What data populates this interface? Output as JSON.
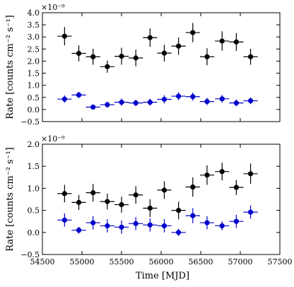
{
  "chart_data": [
    {
      "type": "scatter",
      "panel": "top",
      "ylabel": "Rate [counts cm⁻² s⁻¹]",
      "y_multiplier": "×10⁻⁹",
      "xlim": [
        54500,
        57500
      ],
      "ylim": [
        -0.5,
        4.0
      ],
      "x_ticks": [
        54500,
        55000,
        55500,
        56000,
        56500,
        57000,
        57500
      ],
      "y_ticks": [
        -0.5,
        0.0,
        0.5,
        1.0,
        1.5,
        2.0,
        2.5,
        3.0,
        3.5,
        4.0
      ],
      "y_tick_labels": [
        "−0.5",
        "0.0",
        "0.5",
        "1.0",
        "1.5",
        "2.0",
        "2.5",
        "3.0",
        "3.5",
        "4.0"
      ],
      "grid": false,
      "series": [
        {
          "color": "#000000",
          "x": [
            54780,
            54960,
            55140,
            55320,
            55500,
            55680,
            55860,
            56040,
            56220,
            56400,
            56580,
            56770,
            56950,
            57130
          ],
          "y": [
            3.03,
            2.32,
            2.18,
            1.77,
            2.2,
            2.13,
            2.97,
            2.33,
            2.62,
            3.18,
            2.18,
            2.83,
            2.79,
            2.18
          ],
          "xerr": 90,
          "yerr": [
            0.38,
            0.33,
            0.33,
            0.25,
            0.35,
            0.34,
            0.38,
            0.35,
            0.36,
            0.4,
            0.35,
            0.4,
            0.37,
            0.33
          ]
        },
        {
          "color": "#0000cc",
          "x": [
            54780,
            54960,
            55140,
            55320,
            55500,
            55680,
            55860,
            56040,
            56220,
            56400,
            56580,
            56770,
            56950,
            57130
          ],
          "y": [
            0.43,
            0.6,
            0.1,
            0.2,
            0.3,
            0.27,
            0.3,
            0.42,
            0.55,
            0.53,
            0.33,
            0.44,
            0.27,
            0.36
          ],
          "xerr": 90,
          "yerr": [
            0.15,
            0.13,
            0.1,
            0.12,
            0.15,
            0.13,
            0.14,
            0.17,
            0.17,
            0.17,
            0.15,
            0.16,
            0.14,
            0.14
          ]
        }
      ]
    },
    {
      "type": "scatter",
      "panel": "bottom",
      "xlabel": "Time [MJD]",
      "ylabel": "Rate [counts cm⁻² s⁻¹]",
      "y_multiplier": "×10⁻⁹",
      "xlim": [
        54500,
        57500
      ],
      "ylim": [
        -0.5,
        2.0
      ],
      "x_ticks": [
        54500,
        55000,
        55500,
        56000,
        56500,
        57000,
        57500
      ],
      "x_tick_labels": [
        "54500",
        "55000",
        "55500",
        "56000",
        "56500",
        "57000",
        "57500"
      ],
      "y_ticks": [
        -0.5,
        0.0,
        0.5,
        1.0,
        1.5,
        2.0
      ],
      "y_tick_labels": [
        "−0.5",
        "0.0",
        "0.5",
        "1.0",
        "1.5",
        "2.0"
      ],
      "grid": false,
      "series": [
        {
          "color": "#000000",
          "x": [
            54780,
            54960,
            55140,
            55320,
            55500,
            55680,
            55860,
            56040,
            56220,
            56400,
            56580,
            56770,
            56950,
            57130
          ],
          "y": [
            0.88,
            0.68,
            0.9,
            0.7,
            0.63,
            0.85,
            0.55,
            0.96,
            0.5,
            1.03,
            1.3,
            1.38,
            1.02,
            1.33
          ],
          "xerr": 90,
          "yerr": [
            0.2,
            0.17,
            0.2,
            0.18,
            0.18,
            0.2,
            0.2,
            0.2,
            0.2,
            0.22,
            0.22,
            0.2,
            0.17,
            0.23
          ]
        },
        {
          "color": "#0000cc",
          "x": [
            54780,
            54960,
            55140,
            55320,
            55500,
            55680,
            55860,
            56040,
            56220,
            56400,
            56580,
            56770,
            56950,
            57130
          ],
          "y": [
            0.28,
            0.05,
            0.22,
            0.15,
            0.12,
            0.2,
            0.17,
            0.15,
            0.0,
            0.38,
            0.22,
            0.15,
            0.25,
            0.46
          ],
          "xerr": 90,
          "yerr": [
            0.15,
            0.08,
            0.15,
            0.15,
            0.15,
            0.15,
            0.15,
            0.15,
            0.08,
            0.17,
            0.15,
            0.1,
            0.15,
            0.15
          ]
        }
      ]
    }
  ]
}
